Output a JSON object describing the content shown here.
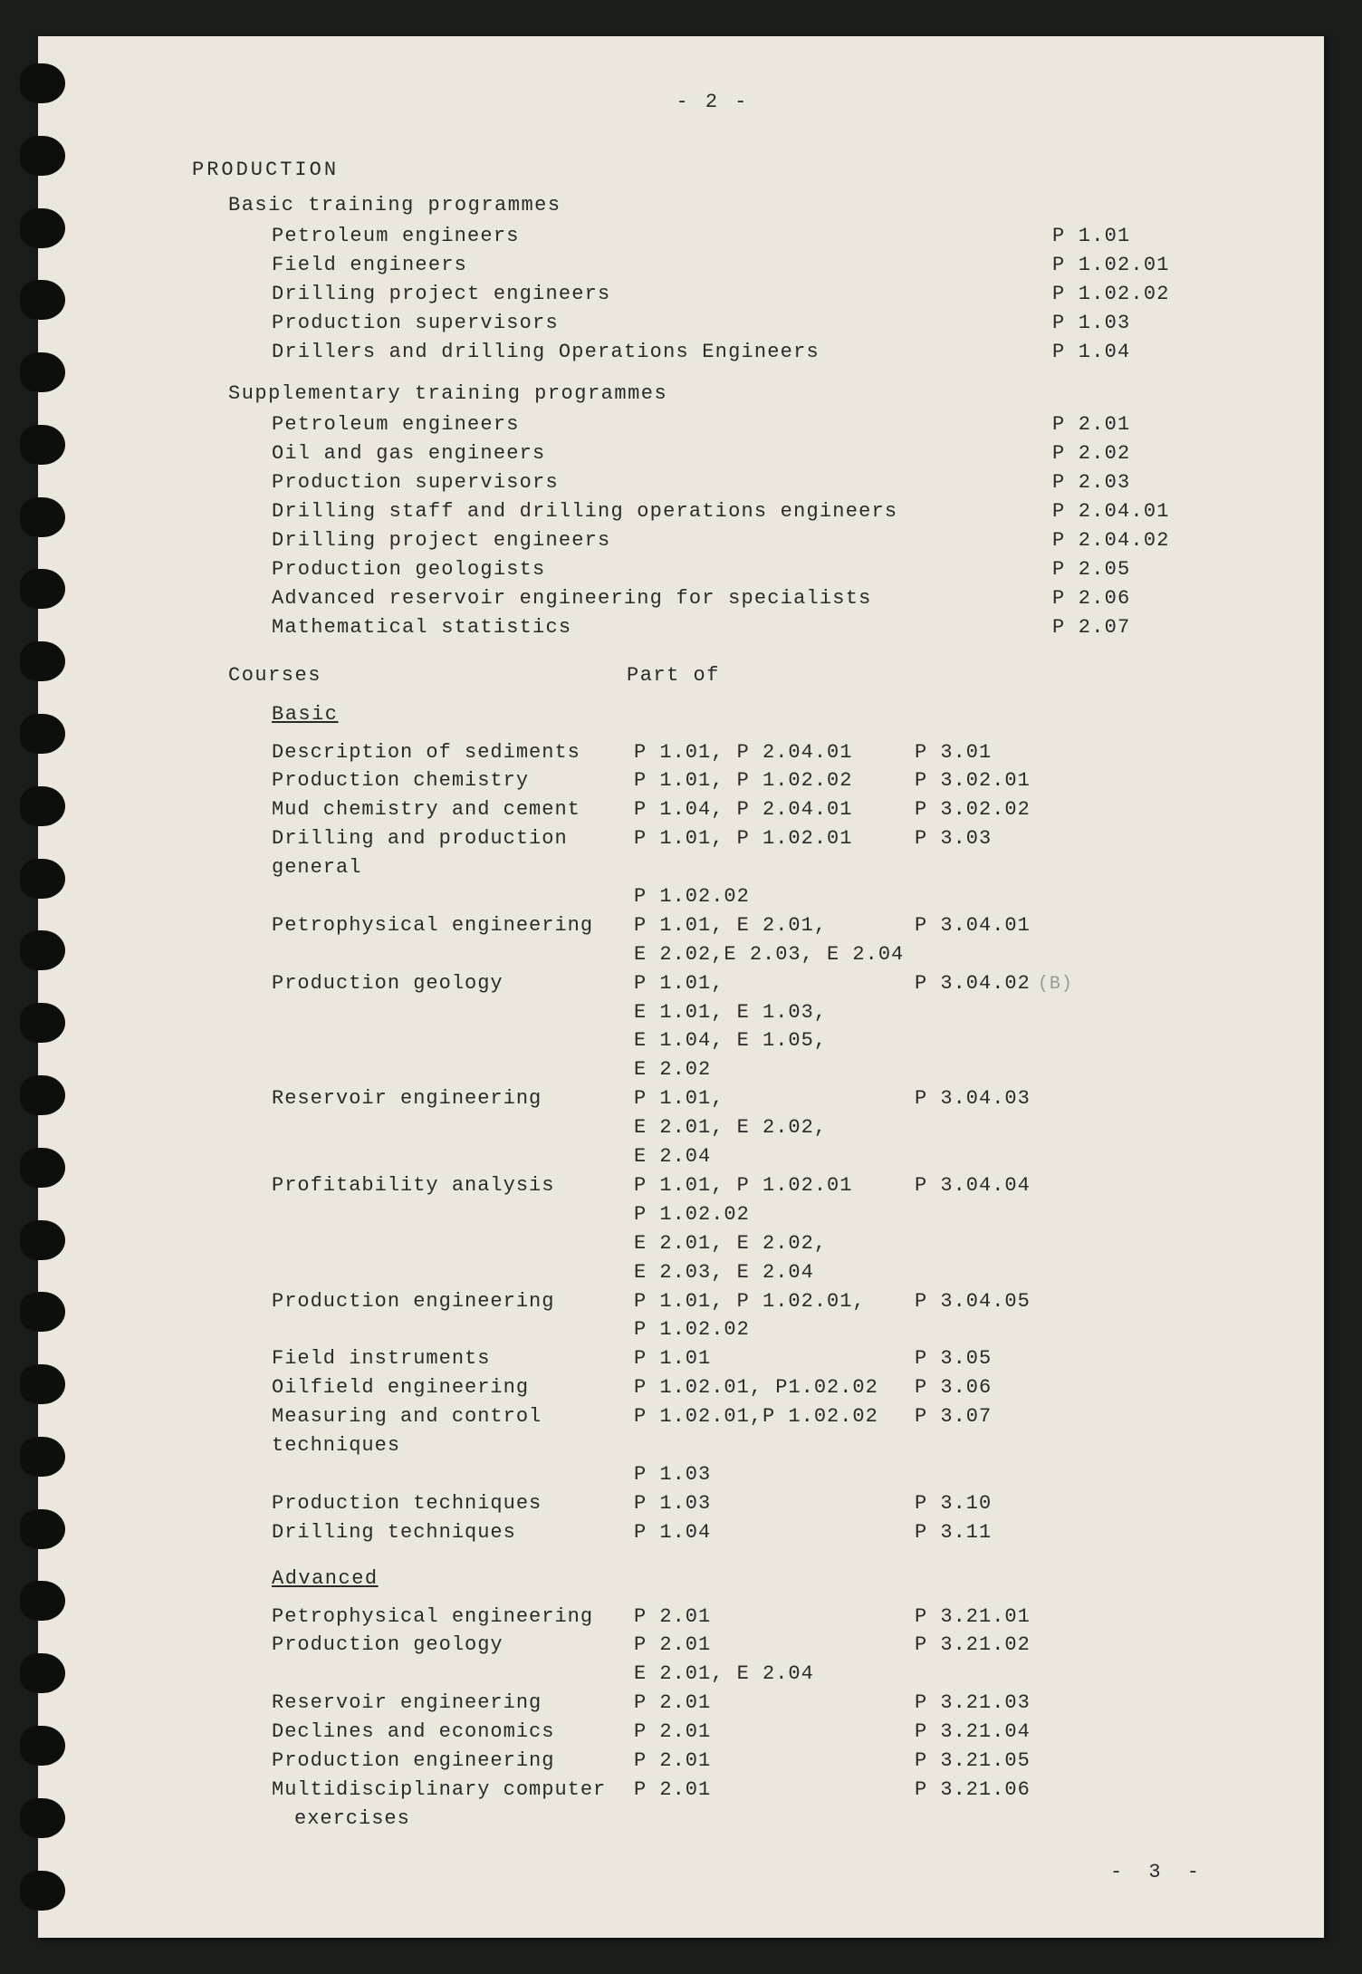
{
  "page": {
    "top_page_number": "- 2 -",
    "bottom_page_number": "- 3 -",
    "section_header": "PRODUCTION",
    "subsections": [
      {
        "title": "Basic training programmes",
        "items": [
          {
            "label": "Petroleum engineers",
            "code": "P 1.01"
          },
          {
            "label": "Field engineers",
            "code": "P 1.02.01"
          },
          {
            "label": "Drilling project engineers",
            "code": "P 1.02.02"
          },
          {
            "label": "Production supervisors",
            "code": "P 1.03"
          },
          {
            "label": "Drillers and drilling Operations Engineers",
            "code": "P 1.04"
          }
        ]
      },
      {
        "title": "Supplementary training programmes",
        "items": [
          {
            "label": "Petroleum engineers",
            "code": "P 2.01"
          },
          {
            "label": "Oil and gas engineers",
            "code": "P 2.02"
          },
          {
            "label": "Production supervisors",
            "code": "P 2.03"
          },
          {
            "label": "Drilling staff and drilling operations engineers",
            "code": "P 2.04.01"
          },
          {
            "label": "Drilling project engineers",
            "code": "P 2.04.02"
          },
          {
            "label": "Production geologists",
            "code": "P 2.05"
          },
          {
            "label": "Advanced reservoir engineering for specialists",
            "code": "P 2.06"
          },
          {
            "label": "Mathematical statistics",
            "code": "P 2.07"
          }
        ]
      }
    ],
    "courses_header": {
      "col1": "Courses",
      "col2": "Part of"
    },
    "categories": [
      {
        "title": "Basic",
        "courses": [
          {
            "name": "Description of sediments",
            "partof": [
              "P 1.01, P 2.04.01"
            ],
            "code": "P 3.01"
          },
          {
            "name": "Production chemistry",
            "partof": [
              "P 1.01, P 1.02.02"
            ],
            "code": "P 3.02.01"
          },
          {
            "name": "Mud chemistry and cement",
            "partof": [
              "P 1.04, P 2.04.01"
            ],
            "code": "P 3.02.02"
          },
          {
            "name": "Drilling and production general",
            "partof": [
              "P 1.01, P 1.02.01",
              "P 1.02.02"
            ],
            "code": "P 3.03"
          },
          {
            "name": "Petrophysical engineering",
            "partof": [
              "P 1.01, E 2.01,",
              "E 2.02,E 2.03, E 2.04"
            ],
            "code": "P 3.04.01"
          },
          {
            "name": "Production geology",
            "partof": [
              "P 1.01,",
              "E 1.01, E 1.03,",
              "E 1.04, E 1.05,",
              "E 2.02"
            ],
            "code": "P 3.04.02",
            "annotation": "(B)"
          },
          {
            "name": "Reservoir engineering",
            "partof": [
              "P 1.01,",
              "E 2.01, E 2.02,",
              "E 2.04"
            ],
            "code": "P 3.04.03"
          },
          {
            "name": "Profitability analysis",
            "partof": [
              "P 1.01, P 1.02.01",
              "P 1.02.02",
              "E 2.01, E 2.02,",
              "E 2.03, E 2.04"
            ],
            "code": "P 3.04.04"
          },
          {
            "name": "Production engineering",
            "partof": [
              "P 1.01, P 1.02.01,",
              "P 1.02.02"
            ],
            "code": "P 3.04.05"
          },
          {
            "name": "Field instruments",
            "partof": [
              "P 1.01"
            ],
            "code": "P 3.05"
          },
          {
            "name": "Oilfield engineering",
            "partof": [
              "P 1.02.01, P1.02.02"
            ],
            "code": "P 3.06"
          },
          {
            "name": "Measuring and control techniques",
            "partof": [
              "P 1.02.01,P 1.02.02",
              "P 1.03"
            ],
            "code": "P 3.07"
          },
          {
            "name": "Production techniques",
            "partof": [
              "P 1.03"
            ],
            "code": "P 3.10"
          },
          {
            "name": "Drilling techniques",
            "partof": [
              "P 1.04"
            ],
            "code": "P 3.11"
          }
        ]
      },
      {
        "title": "Advanced",
        "courses": [
          {
            "name": "Petrophysical engineering",
            "partof": [
              "P 2.01"
            ],
            "code": "P 3.21.01"
          },
          {
            "name": "Production geology",
            "partof": [
              "P 2.01",
              "E 2.01, E 2.04"
            ],
            "code": "P 3.21.02"
          },
          {
            "name": "Reservoir engineering",
            "partof": [
              "P 2.01"
            ],
            "code": "P 3.21.03"
          },
          {
            "name": "Declines and economics",
            "partof": [
              "P 2.01"
            ],
            "code": "P 3.21.04"
          },
          {
            "name": "Production engineering",
            "partof": [
              "P 2.01"
            ],
            "code": "P 3.21.05"
          },
          {
            "name": "Multidisciplinary computer",
            "name_line2": "exercises",
            "partof": [
              "P 2.01"
            ],
            "code": "P 3.21.06"
          }
        ]
      }
    ]
  },
  "style": {
    "holes_count": 26,
    "page_bg": "#ebe7dc",
    "body_bg": "#1a1d1a",
    "text_color": "#2a2a2a",
    "font": "Courier New"
  }
}
